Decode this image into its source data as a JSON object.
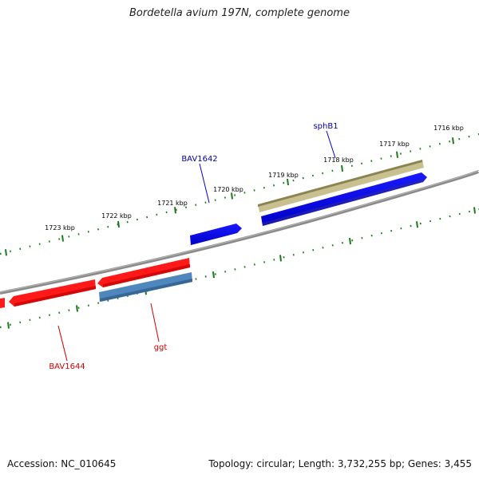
{
  "title": "Bordetella avium 197N, complete genome",
  "accession_text": "Accession: NC_010645",
  "summary_text": "Topology: circular; Length: 3,732,255 bp; Genes: 3,455",
  "colors": {
    "backbone": "#7a7a7a",
    "ticks": "#1a7a1a",
    "forward_gene": "#0000e6",
    "reverse_gene": "#e60000",
    "sphB1_gene": "#b8b078",
    "ggt_gene": "#4a7fb3",
    "forward_label": "#0000aa",
    "reverse_label": "#cc0000"
  },
  "ticks": {
    "unit": "kbp",
    "outer_labels": [
      "1723 kbp",
      "1722 kbp",
      "1721 kbp",
      "1720 kbp",
      "1719 kbp",
      "1718 kbp",
      "1717 kbp",
      "1716 kbp"
    ]
  },
  "genes": [
    {
      "label": "sphB1",
      "strand": "forward",
      "kind": "sphB1"
    },
    {
      "label": "BAV1642",
      "strand": "forward",
      "kind": "forward"
    },
    {
      "label": "ggt",
      "strand": "reverse",
      "kind": "ggt"
    },
    {
      "label": "BAV1644",
      "strand": "reverse",
      "kind": "reverse"
    }
  ]
}
